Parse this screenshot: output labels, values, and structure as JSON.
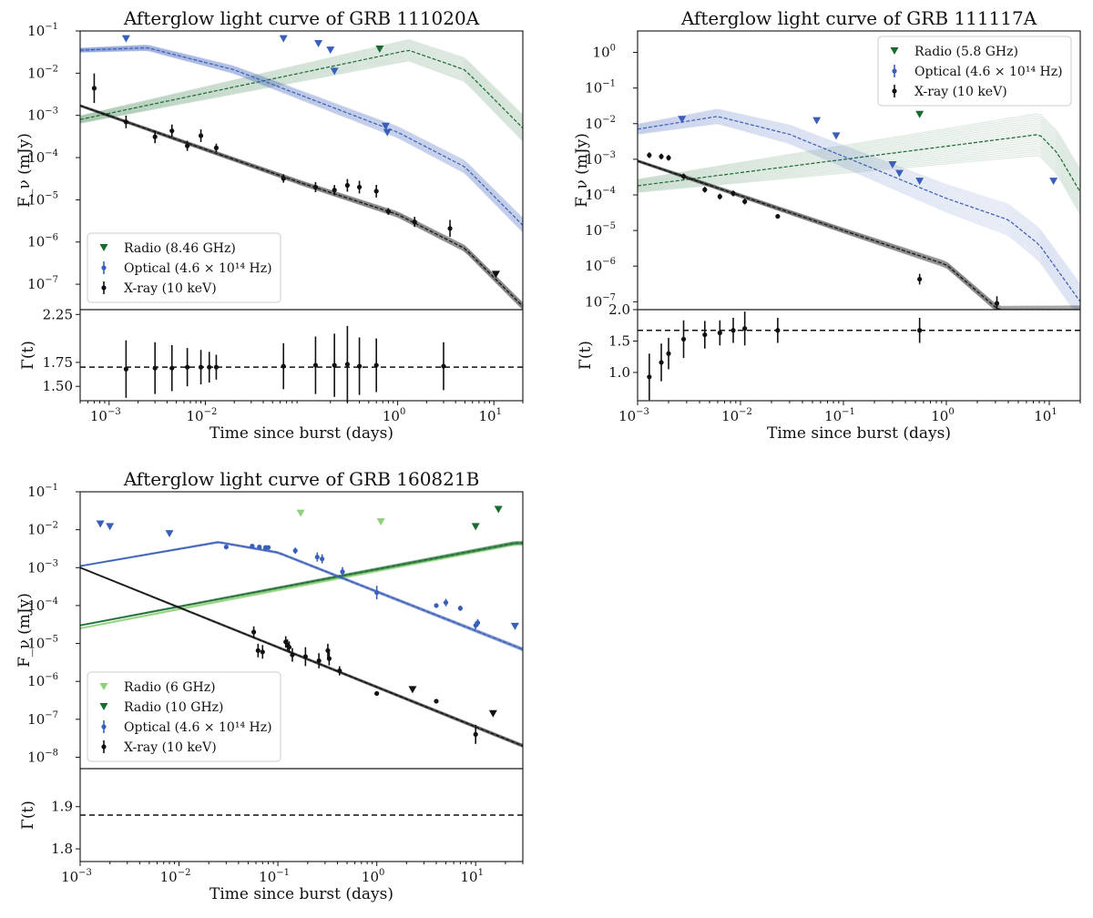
{
  "colors": {
    "radio": "#1a6b30",
    "radio_light": "#8fd17a",
    "optical": "#3a5fb8",
    "xray": "#111111"
  },
  "chart_data": [
    {
      "type": "line",
      "title": "Afterglow light curve of GRB 111020A",
      "ylabel": "F_ν (mJy)",
      "xlabel": "Time since burst (days)",
      "gamma_label": "Γ(t)",
      "x_scale": "log",
      "y_scale": "log",
      "xlim": [
        0.0005,
        20
      ],
      "ylim": [
        2.5e-08,
        0.1
      ],
      "x_ticks": [
        {
          "v": 0.001,
          "label": "10",
          "exp": "−3"
        },
        {
          "v": 0.01,
          "label": "10",
          "exp": "−2"
        },
        {
          "v": 1,
          "label": "10",
          "exp": "0"
        },
        {
          "v": 10,
          "label": "10",
          "exp": "1"
        }
      ],
      "y_ticks": [
        {
          "v": 0.1,
          "label": "10",
          "exp": "−1"
        },
        {
          "v": 0.01,
          "label": "10",
          "exp": "−2"
        },
        {
          "v": 0.001,
          "label": "10",
          "exp": "−3"
        },
        {
          "v": 0.0001,
          "label": "10",
          "exp": "−4"
        },
        {
          "v": 1e-05,
          "label": "10",
          "exp": "−5"
        },
        {
          "v": 1e-06,
          "label": "10",
          "exp": "−6"
        },
        {
          "v": 1e-07,
          "label": "10",
          "exp": "−7"
        }
      ],
      "legend": [
        {
          "label": "Radio (8.46 GHz)",
          "kind": "triangle",
          "color": "#1a6b30"
        },
        {
          "label": "Optical (4.6 × 10¹⁴ Hz)",
          "kind": "errpoint",
          "color": "#3a5fb8"
        },
        {
          "label": "X-ray (10 keV)",
          "kind": "errpoint",
          "color": "#111111"
        }
      ],
      "legend_position": "lower-left",
      "models": [
        {
          "name": "radio",
          "color": "#1a6b30",
          "points": [
            [
              0.0005,
              0.0008
            ],
            [
              1.3,
              0.035
            ],
            [
              5,
              0.012
            ],
            [
              20,
              0.0005
            ]
          ],
          "spread": 0.22
        },
        {
          "name": "optical",
          "color": "#3a5fb8",
          "points": [
            [
              0.0005,
              0.035
            ],
            [
              0.0025,
              0.04
            ],
            [
              0.02,
              0.012
            ],
            [
              1,
              0.0004
            ],
            [
              5,
              6e-05
            ],
            [
              20,
              2.5e-06
            ]
          ],
          "spread": 0.12
        },
        {
          "name": "xray",
          "color": "#111111",
          "points": [
            [
              0.0005,
              0.0017
            ],
            [
              0.1,
              2.5e-05
            ],
            [
              1,
              4.5e-06
            ],
            [
              5,
              7e-07
            ],
            [
              20,
              3e-08
            ]
          ],
          "spread": 0.06
        }
      ],
      "series": [
        {
          "name": "Radio upper limits",
          "kind": "triangle",
          "color": "#1a6b30",
          "x": [
            0.65
          ],
          "y": [
            0.037
          ]
        },
        {
          "name": "Optical upper limits",
          "kind": "triangle",
          "color": "#3a5fb8",
          "x": [
            0.0015,
            0.065,
            0.15,
            0.2,
            0.22,
            0.75,
            0.78
          ],
          "y": [
            0.065,
            0.065,
            0.05,
            0.035,
            0.011,
            0.00055,
            0.00039
          ]
        },
        {
          "name": "Optical detections",
          "kind": "errpoint",
          "color": "#3a5fb8",
          "x": [],
          "y": [],
          "err": []
        },
        {
          "name": "X-ray detections",
          "kind": "errpoint",
          "color": "#111111",
          "x": [
            0.0007,
            0.0015,
            0.003,
            0.0045,
            0.0065,
            0.009,
            0.013,
            0.065,
            0.14,
            0.22,
            0.3,
            0.4,
            0.6,
            0.8,
            1.5,
            3.5
          ],
          "y": [
            0.0044,
            0.0007,
            0.00031,
            0.00043,
            0.00019,
            0.00033,
            0.00017,
            3.2e-05,
            2e-05,
            1.7e-05,
            2.2e-05,
            2e-05,
            1.6e-05,
            5.3e-06,
            3e-06,
            2.1e-06
          ],
          "err": [
            0.35,
            0.15,
            0.15,
            0.15,
            0.12,
            0.15,
            0.1,
            0.1,
            0.12,
            0.12,
            0.15,
            0.15,
            0.15,
            0.08,
            0.12,
            0.2
          ]
        },
        {
          "name": "X-ray upper limits",
          "kind": "triangle",
          "color": "#111111",
          "x": [
            10.5
          ],
          "y": [
            1.7e-07
          ]
        }
      ],
      "gamma": {
        "ylim": [
          1.35,
          2.3
        ],
        "y_ticks": [
          {
            "v": 2.25,
            "label": "2.25"
          },
          {
            "v": 1.75,
            "label": "1.75"
          },
          {
            "v": 1.5,
            "label": "1.50"
          }
        ],
        "dashed_y": 1.7,
        "x": [
          0.0015,
          0.003,
          0.0045,
          0.0065,
          0.009,
          0.011,
          0.013,
          0.065,
          0.14,
          0.22,
          0.3,
          0.4,
          0.6,
          3
        ],
        "y": [
          1.68,
          1.69,
          1.69,
          1.7,
          1.7,
          1.7,
          1.7,
          1.71,
          1.72,
          1.72,
          1.73,
          1.71,
          1.72,
          1.71
        ],
        "err": [
          0.3,
          0.27,
          0.24,
          0.2,
          0.18,
          0.16,
          0.13,
          0.24,
          0.3,
          0.33,
          0.4,
          0.3,
          0.28,
          0.25
        ]
      }
    },
    {
      "type": "line",
      "title": "Afterglow light curve of GRB 111117A",
      "ylabel": "F_ν (mJy)",
      "xlabel": "Time since burst (days)",
      "gamma_label": "Γ(t)",
      "x_scale": "log",
      "y_scale": "log",
      "xlim": [
        0.001,
        20
      ],
      "ylim": [
        6e-08,
        4
      ],
      "x_ticks": [
        {
          "v": 0.001,
          "label": "10",
          "exp": "−3"
        },
        {
          "v": 0.01,
          "label": "10",
          "exp": "−2"
        },
        {
          "v": 0.1,
          "label": "10",
          "exp": "−1"
        },
        {
          "v": 1,
          "label": "10",
          "exp": "0"
        },
        {
          "v": 10,
          "label": "10",
          "exp": "1"
        }
      ],
      "y_ticks": [
        {
          "v": 1,
          "label": "10",
          "exp": "0"
        },
        {
          "v": 0.1,
          "label": "10",
          "exp": "−1"
        },
        {
          "v": 0.01,
          "label": "10",
          "exp": "−2"
        },
        {
          "v": 0.001,
          "label": "10",
          "exp": "−3"
        },
        {
          "v": 0.0001,
          "label": "10",
          "exp": "−4"
        },
        {
          "v": 1e-05,
          "label": "10",
          "exp": "−5"
        },
        {
          "v": 1e-06,
          "label": "10",
          "exp": "−6"
        },
        {
          "v": 1e-07,
          "label": "10",
          "exp": "−7"
        }
      ],
      "legend": [
        {
          "label": "Radio (5.8 GHz)",
          "kind": "triangle",
          "color": "#1a6b30"
        },
        {
          "label": "Optical (4.6 × 10¹⁴ Hz)",
          "kind": "errpoint",
          "color": "#3a5fb8"
        },
        {
          "label": "X-ray (10 keV)",
          "kind": "errpoint",
          "color": "#111111"
        }
      ],
      "legend_position": "upper-right",
      "models": [
        {
          "name": "radio",
          "color": "#1a6b30",
          "points": [
            [
              0.001,
              0.00018
            ],
            [
              8,
              0.005
            ],
            [
              12,
              0.0015
            ],
            [
              20,
              0.00012
            ]
          ],
          "spread": 0.45
        },
        {
          "name": "optical",
          "color": "#3a5fb8",
          "points": [
            [
              0.001,
              0.007
            ],
            [
              0.006,
              0.016
            ],
            [
              0.03,
              0.005
            ],
            [
              1,
              8e-05
            ],
            [
              4,
              2e-05
            ],
            [
              8,
              4e-06
            ],
            [
              20,
              1e-07
            ]
          ],
          "spread": 0.35
        },
        {
          "name": "xray",
          "color": "#111111",
          "points": [
            [
              0.001,
              0.0009
            ],
            [
              0.1,
              1e-05
            ],
            [
              1,
              1.1e-06
            ],
            [
              3.2,
              6e-08
            ]
          ],
          "spread": 0.08
        }
      ],
      "series": [
        {
          "name": "Radio upper limits",
          "kind": "triangle",
          "color": "#1a6b30",
          "x": [
            0.55
          ],
          "y": [
            0.018
          ]
        },
        {
          "name": "Optical upper limits",
          "kind": "triangle",
          "color": "#3a5fb8",
          "x": [
            0.0027,
            0.055,
            0.085,
            0.3,
            0.35,
            0.55,
            11
          ],
          "y": [
            0.013,
            0.012,
            0.0045,
            0.0007,
            0.0004,
            0.00024,
            0.00024
          ]
        },
        {
          "name": "Optical detections",
          "kind": "errpoint",
          "color": "#3a5fb8",
          "x": [],
          "y": [],
          "err": []
        },
        {
          "name": "X-ray detections",
          "kind": "errpoint",
          "color": "#111111",
          "x": [
            0.0013,
            0.0017,
            0.002,
            0.0028,
            0.0045,
            0.0063,
            0.0085,
            0.011,
            0.023,
            0.55,
            3.1
          ],
          "y": [
            0.0013,
            0.0012,
            0.0011,
            0.00033,
            0.00014,
            9e-05,
            0.00011,
            6.5e-05,
            2.5e-05,
            4.3e-07,
            9e-08
          ],
          "err": [
            0.08,
            0.08,
            0.08,
            0.08,
            0.08,
            0.08,
            0.08,
            0.08,
            0.06,
            0.15,
            0.2
          ]
        },
        {
          "name": "X-ray upper limits",
          "kind": "triangle",
          "color": "#111111",
          "x": [],
          "y": []
        }
      ],
      "gamma": {
        "ylim": [
          0.55,
          2.0
        ],
        "y_ticks": [
          {
            "v": 2.0,
            "label": "2.0"
          },
          {
            "v": 1.5,
            "label": "1.5"
          },
          {
            "v": 1.0,
            "label": "1.0"
          }
        ],
        "dashed_y": 1.67,
        "x": [
          0.0013,
          0.0017,
          0.002,
          0.0028,
          0.0045,
          0.0063,
          0.0085,
          0.011,
          0.023,
          0.55
        ],
        "y": [
          0.93,
          1.16,
          1.3,
          1.53,
          1.6,
          1.63,
          1.67,
          1.7,
          1.67,
          1.67
        ],
        "err": [
          0.37,
          0.3,
          0.25,
          0.3,
          0.22,
          0.2,
          0.2,
          0.27,
          0.2,
          0.2
        ]
      }
    },
    {
      "type": "line",
      "title": "Afterglow light curve of GRB 160821B",
      "ylabel": "F_ν (mJy)",
      "xlabel": "Time since burst (days)",
      "gamma_label": "Γ(t)",
      "x_scale": "log",
      "y_scale": "log",
      "xlim": [
        0.001,
        30
      ],
      "ylim": [
        5e-09,
        0.1
      ],
      "x_ticks": [
        {
          "v": 0.001,
          "label": "10",
          "exp": "−3"
        },
        {
          "v": 0.01,
          "label": "10",
          "exp": "−2"
        },
        {
          "v": 0.1,
          "label": "10",
          "exp": "−1"
        },
        {
          "v": 1,
          "label": "10",
          "exp": "0"
        },
        {
          "v": 10,
          "label": "10",
          "exp": "1"
        }
      ],
      "y_ticks": [
        {
          "v": 0.1,
          "label": "10",
          "exp": "−1"
        },
        {
          "v": 0.01,
          "label": "10",
          "exp": "−2"
        },
        {
          "v": 0.001,
          "label": "10",
          "exp": "−3"
        },
        {
          "v": 0.0001,
          "label": "10",
          "exp": "−4"
        },
        {
          "v": 1e-05,
          "label": "10",
          "exp": "−5"
        },
        {
          "v": 1e-06,
          "label": "10",
          "exp": "−6"
        },
        {
          "v": 1e-07,
          "label": "10",
          "exp": "−7"
        },
        {
          "v": 1e-08,
          "label": "10",
          "exp": "−8"
        }
      ],
      "legend": [
        {
          "label": "Radio (6 GHz)",
          "kind": "triangle",
          "color": "#8fd17a"
        },
        {
          "label": "Radio (10 GHz)",
          "kind": "triangle",
          "color": "#1a6b30"
        },
        {
          "label": "Optical (4.6 × 10¹⁴ Hz)",
          "kind": "errpoint",
          "color": "#3a5fb8"
        },
        {
          "label": "X-ray (10 keV)",
          "kind": "errpoint",
          "color": "#111111"
        }
      ],
      "legend_position": "lower-left",
      "models": [
        {
          "name": "radio6",
          "color": "#8fd17a",
          "points": [
            [
              0.001,
              2.5e-05
            ],
            [
              25,
              0.0042
            ],
            [
              30,
              0.0042
            ]
          ],
          "spread": 0.03
        },
        {
          "name": "radio10",
          "color": "#1a6b30",
          "points": [
            [
              0.001,
              3e-05
            ],
            [
              25,
              0.0045
            ],
            [
              30,
              0.0045
            ]
          ],
          "spread": 0.03
        },
        {
          "name": "optical",
          "color": "#3a5fb8",
          "points": [
            [
              0.001,
              0.0011
            ],
            [
              0.025,
              0.0047
            ],
            [
              0.1,
              0.0025
            ],
            [
              30,
              7e-06
            ]
          ],
          "spread": 0.03
        },
        {
          "name": "xray",
          "color": "#111111",
          "points": [
            [
              0.001,
              0.001
            ],
            [
              30,
              2e-08
            ]
          ],
          "spread": 0.03
        }
      ],
      "series": [
        {
          "name": "Radio 6 GHz upper limits",
          "kind": "triangle",
          "color": "#8fd17a",
          "x": [
            0.17,
            1.1
          ],
          "y": [
            0.027,
            0.016
          ]
        },
        {
          "name": "Radio 10 GHz upper limits",
          "kind": "triangle",
          "color": "#1a6b30",
          "x": [
            10,
            17
          ],
          "y": [
            0.012,
            0.034
          ]
        },
        {
          "name": "Optical upper limits",
          "kind": "triangle",
          "color": "#3a5fb8",
          "x": [
            0.0016,
            0.002,
            0.008,
            25
          ],
          "y": [
            0.014,
            0.012,
            0.0078,
            2.8e-05
          ]
        },
        {
          "name": "Optical detections",
          "kind": "errpoint",
          "color": "#3a5fb8",
          "x": [
            0.03,
            0.055,
            0.065,
            0.075,
            0.08,
            0.15,
            0.25,
            0.28,
            0.45,
            1.0,
            4,
            5,
            7,
            10,
            10.5
          ],
          "y": [
            0.0035,
            0.0037,
            0.0035,
            0.0034,
            0.0034,
            0.0028,
            0.0019,
            0.0017,
            0.00078,
            0.00022,
            0.0001,
            0.00012,
            8.5e-05,
            3e-05,
            3.5e-05
          ],
          "err": [
            0.03,
            0.05,
            0.05,
            0.04,
            0.04,
            0.08,
            0.12,
            0.12,
            0.12,
            0.18,
            0.06,
            0.1,
            0.07,
            0.1,
            0.1
          ]
        },
        {
          "name": "X-ray detections",
          "kind": "errpoint",
          "color": "#111111",
          "x": [
            0.057,
            0.063,
            0.07,
            0.12,
            0.125,
            0.13,
            0.14,
            0.19,
            0.26,
            0.32,
            0.33,
            0.42,
            1.0,
            4.0,
            10
          ],
          "y": [
            2e-05,
            6.5e-06,
            6e-06,
            1.1e-05,
            9e-06,
            8e-06,
            5e-06,
            4.5e-06,
            3.5e-06,
            6.5e-06,
            4e-06,
            1.9e-06,
            4.8e-07,
            3e-07,
            4e-08
          ],
          "err": [
            0.15,
            0.18,
            0.18,
            0.15,
            0.15,
            0.15,
            0.18,
            0.25,
            0.2,
            0.18,
            0.18,
            0.12,
            0.05,
            0.05,
            0.25
          ]
        },
        {
          "name": "X-ray upper limits",
          "kind": "triangle",
          "color": "#111111",
          "x": [
            2.3,
            15
          ],
          "y": [
            6e-07,
            1.4e-07
          ]
        }
      ],
      "gamma": {
        "ylim": [
          1.77,
          1.99
        ],
        "y_ticks": [
          {
            "v": 1.9,
            "label": "1.9"
          },
          {
            "v": 1.8,
            "label": "1.8"
          }
        ],
        "dashed_y": 1.88,
        "x": [],
        "y": [],
        "err": []
      }
    }
  ]
}
